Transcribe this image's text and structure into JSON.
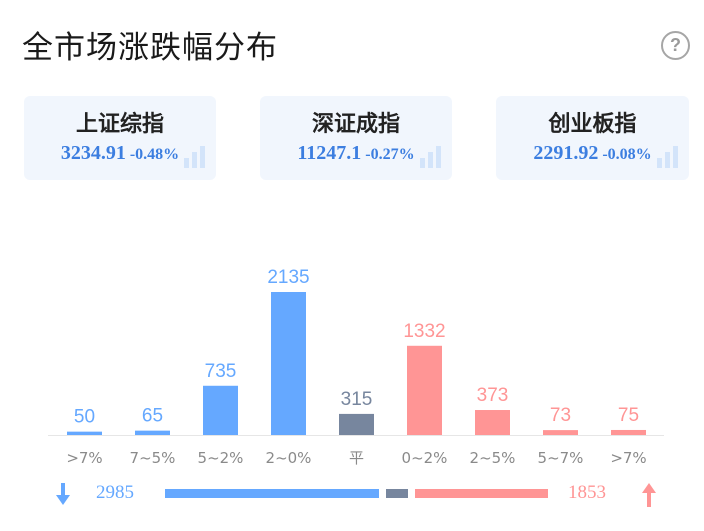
{
  "header": {
    "title": "全市场涨跌幅分布",
    "help_icon": "?"
  },
  "indices": [
    {
      "name": "上证综指",
      "value": "3234.91",
      "change": "-0.48%"
    },
    {
      "name": "深证成指",
      "value": "11247.1",
      "change": "-0.27%"
    },
    {
      "name": "创业板指",
      "value": "2291.92",
      "change": "-0.08%"
    }
  ],
  "colors": {
    "down": "#65a8ff",
    "flat": "#77869e",
    "up": "#ff9595",
    "quote": "#3c7ee0"
  },
  "chart_data": {
    "type": "bar",
    "categories": [
      ">7%",
      "7~5%",
      "5~2%",
      "2~0%",
      "平",
      "0~2%",
      "2~5%",
      "5~7%",
      ">7%"
    ],
    "values": [
      50,
      65,
      735,
      2135,
      315,
      1332,
      373,
      73,
      75
    ],
    "groups": [
      "down",
      "down",
      "down",
      "down",
      "flat",
      "up",
      "up",
      "up",
      "up"
    ],
    "ylim": [
      0,
      2135
    ],
    "grid": false
  },
  "summary": {
    "down_count": "2985",
    "up_count": "1853",
    "down_value": 2985,
    "flat_value": 315,
    "up_value": 1853
  }
}
